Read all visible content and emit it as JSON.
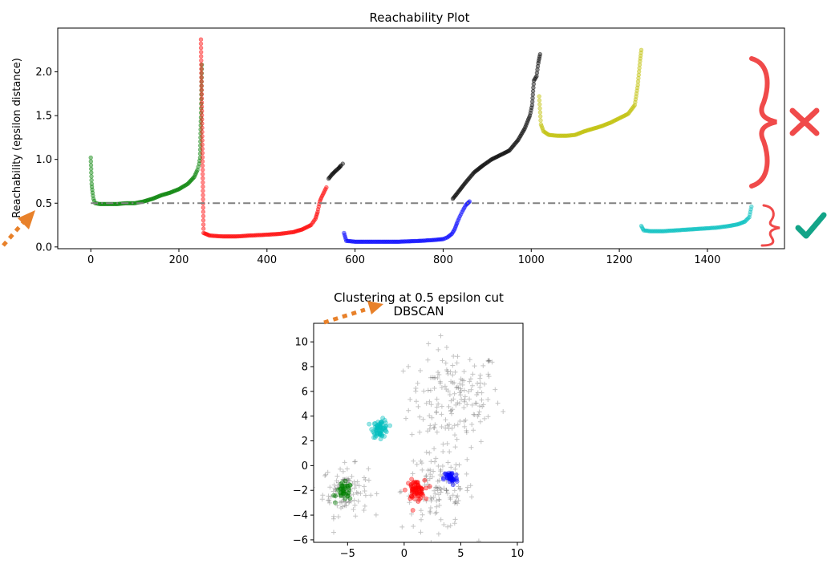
{
  "colors": {
    "green": "#008000",
    "red": "#ff0000",
    "black": "#000000",
    "blue": "#0000ff",
    "yellow": "#bfbf00",
    "cyan": "#00bfbf",
    "threshold_line": "#808080",
    "noise": "#555555",
    "annotation_red": "#f04a4a",
    "annotation_orange": "#e8812a",
    "annotation_teal": "#13a488"
  },
  "chart_data": [
    {
      "type": "scatter",
      "title": "Reachability Plot",
      "xlabel": "",
      "ylabel": "Reachability (epsilon distance)",
      "xlim": [
        -75,
        1575
      ],
      "ylim": [
        -0.02,
        2.5
      ],
      "xticks": [
        0,
        200,
        400,
        600,
        800,
        1000,
        1200,
        1400
      ],
      "yticks": [
        0.0,
        0.5,
        1.0,
        1.5,
        2.0
      ],
      "grid": false,
      "threshold_line": {
        "y": 0.5,
        "x": [
          0,
          1500
        ],
        "style": "dash-dot"
      },
      "series": [
        {
          "color_key": "green",
          "x": [
            0,
            2,
            4,
            6,
            10,
            20,
            40,
            60,
            80,
            100,
            120,
            140,
            160,
            180,
            200,
            220,
            235,
            242,
            246,
            248,
            250,
            251,
            252
          ],
          "y": [
            1.02,
            0.72,
            0.62,
            0.55,
            0.5,
            0.49,
            0.49,
            0.49,
            0.5,
            0.5,
            0.52,
            0.55,
            0.59,
            0.62,
            0.66,
            0.72,
            0.8,
            0.88,
            0.95,
            1.02,
            1.48,
            1.74,
            2.08
          ]
        },
        {
          "color_key": "red",
          "x": [
            250,
            256,
            270,
            300,
            330,
            360,
            400,
            430,
            460,
            480,
            500,
            510,
            515,
            520,
            525,
            535
          ],
          "y": [
            2.37,
            0.16,
            0.13,
            0.12,
            0.12,
            0.13,
            0.14,
            0.15,
            0.17,
            0.2,
            0.25,
            0.32,
            0.4,
            0.52,
            0.58,
            0.68
          ]
        },
        {
          "color_key": "black",
          "x": [
            540,
            548,
            556,
            563,
            568,
            572,
            822,
            830,
            850,
            870,
            890,
            910,
            930,
            950,
            970,
            985,
            997,
            1002,
            1006,
            1012,
            1016,
            1018,
            1020
          ],
          "y": [
            0.78,
            0.83,
            0.87,
            0.9,
            0.93,
            0.95,
            0.55,
            0.6,
            0.73,
            0.85,
            0.93,
            1.0,
            1.05,
            1.1,
            1.22,
            1.35,
            1.5,
            1.62,
            1.9,
            1.95,
            2.1,
            2.15,
            2.2
          ]
        },
        {
          "color_key": "blue",
          "x": [
            575,
            580,
            600,
            650,
            700,
            750,
            780,
            800,
            810,
            820,
            826,
            832,
            838,
            845,
            852,
            860
          ],
          "y": [
            0.16,
            0.07,
            0.06,
            0.06,
            0.06,
            0.07,
            0.08,
            0.09,
            0.11,
            0.15,
            0.2,
            0.28,
            0.35,
            0.42,
            0.48,
            0.52
          ]
        },
        {
          "color_key": "yellow",
          "x": [
            1018,
            1022,
            1028,
            1040,
            1060,
            1080,
            1100,
            1120,
            1140,
            1160,
            1180,
            1200,
            1220,
            1235,
            1242,
            1247,
            1250
          ],
          "y": [
            1.72,
            1.4,
            1.32,
            1.28,
            1.27,
            1.27,
            1.28,
            1.32,
            1.35,
            1.38,
            1.42,
            1.47,
            1.52,
            1.62,
            1.85,
            2.12,
            2.25
          ]
        },
        {
          "color_key": "cyan",
          "x": [
            1250,
            1255,
            1270,
            1300,
            1330,
            1360,
            1390,
            1420,
            1450,
            1470,
            1485,
            1495,
            1500
          ],
          "y": [
            0.24,
            0.19,
            0.18,
            0.18,
            0.19,
            0.2,
            0.21,
            0.22,
            0.24,
            0.26,
            0.29,
            0.34,
            0.46
          ]
        }
      ]
    },
    {
      "type": "scatter",
      "title": "Clustering at 0.5 epsilon cut\nDBSCAN",
      "title_lines": [
        "Clustering at 0.5 epsilon cut",
        "DBSCAN"
      ],
      "xlabel": "",
      "ylabel": "",
      "xlim": [
        -8,
        10.5
      ],
      "ylim": [
        -6.2,
        11.5
      ],
      "xticks": [
        -5,
        0,
        5,
        10
      ],
      "yticks": [
        -6,
        -4,
        -2,
        0,
        2,
        4,
        6,
        8,
        10
      ],
      "grid": false,
      "clusters": [
        {
          "color_key": "green",
          "center": [
            -5.3,
            -2.1
          ],
          "spread": 0.35,
          "count": 40
        },
        {
          "color_key": "cyan",
          "center": [
            -2.1,
            3.0
          ],
          "spread": 0.35,
          "count": 70
        },
        {
          "color_key": "red",
          "center": [
            1.0,
            -2.0
          ],
          "spread": 0.4,
          "count": 70
        },
        {
          "color_key": "blue",
          "center": [
            4.1,
            -1.0
          ],
          "spread": 0.3,
          "count": 40
        }
      ],
      "noise": [
        {
          "marker": "+",
          "center": [
            4.5,
            5.5
          ],
          "spread": 2.0,
          "count": 170
        },
        {
          "marker": "+",
          "center": [
            -5.2,
            -2.0
          ],
          "spread": 1.0,
          "count": 110
        },
        {
          "marker": "+",
          "center": [
            3.0,
            -2.0
          ],
          "spread": 1.6,
          "count": 130
        }
      ]
    }
  ]
}
